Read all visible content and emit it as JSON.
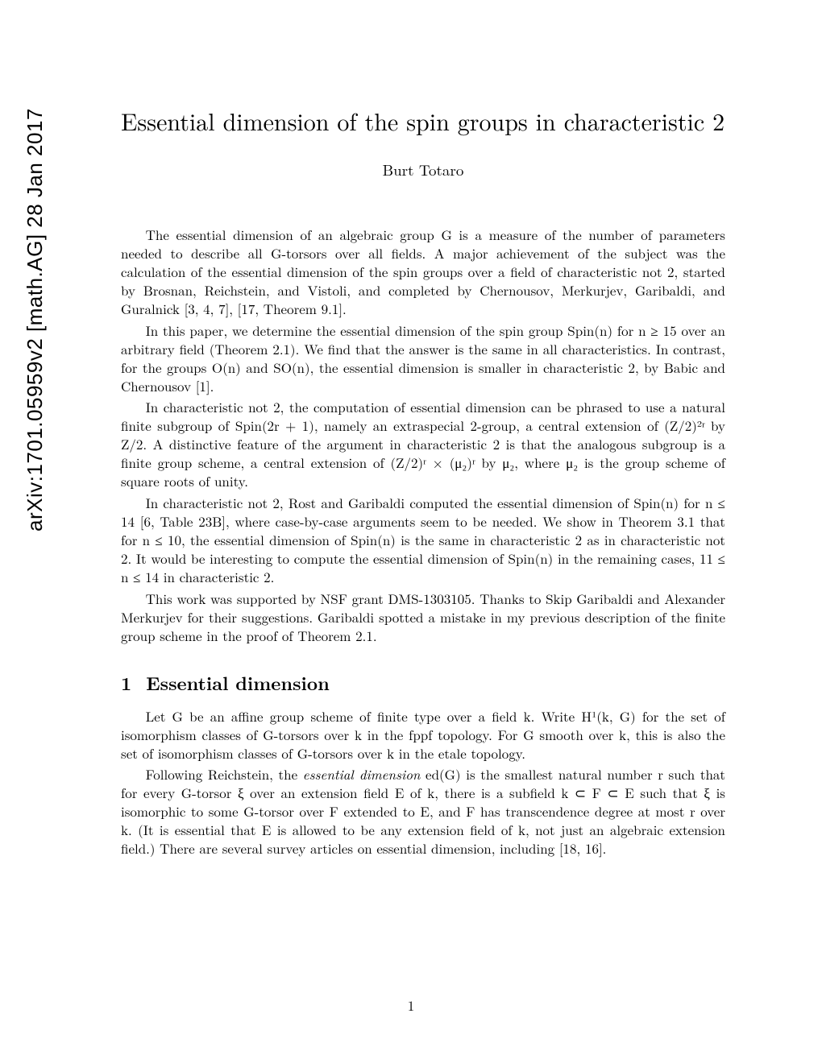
{
  "arxiv_stamp": "arXiv:1701.05959v2  [math.AG]  28 Jan 2017",
  "title": "Essential dimension of the spin groups in characteristic 2",
  "author": "Burt Totaro",
  "paragraphs": {
    "p1": "The essential dimension of an algebraic group G is a measure of the number of parameters needed to describe all G-torsors over all fields. A major achievement of the subject was the calculation of the essential dimension of the spin groups over a field of characteristic not 2, started by Brosnan, Reichstein, and Vistoli, and completed by Chernousov, Merkurjev, Garibaldi, and Guralnick [3, 4, 7], [17, Theorem 9.1].",
    "p2": "In this paper, we determine the essential dimension of the spin group Spin(n) for n ≥ 15 over an arbitrary field (Theorem 2.1). We find that the answer is the same in all characteristics. In contrast, for the groups O(n) and SO(n), the essential dimension is smaller in characteristic 2, by Babic and Chernousov [1].",
    "p3": "In characteristic not 2, the computation of essential dimension can be phrased to use a natural finite subgroup of Spin(2r + 1), namely an extraspecial 2-group, a central extension of (Z/2)²ʳ by Z/2. A distinctive feature of the argument in characteristic 2 is that the analogous subgroup is a finite group scheme, a central extension of (Z/2)ʳ × (μ₂)ʳ by μ₂, where μ₂ is the group scheme of square roots of unity.",
    "p4": "In characteristic not 2, Rost and Garibaldi computed the essential dimension of Spin(n) for n ≤ 14 [6, Table 23B], where case-by-case arguments seem to be needed. We show in Theorem 3.1 that for n ≤ 10, the essential dimension of Spin(n) is the same in characteristic 2 as in characteristic not 2. It would be interesting to compute the essential dimension of Spin(n) in the remaining cases, 11 ≤ n ≤ 14 in characteristic 2.",
    "p5": "This work was supported by NSF grant DMS-1303105. Thanks to Skip Garibaldi and Alexander Merkurjev for their suggestions. Garibaldi spotted a mistake in my previous description of the finite group scheme in the proof of Theorem 2.1."
  },
  "section1": {
    "number": "1",
    "title": "Essential dimension"
  },
  "section1_paragraphs": {
    "s1p1": "Let G be an affine group scheme of finite type over a field k. Write H¹(k, G) for the set of isomorphism classes of G-torsors over k in the fppf topology. For G smooth over k, this is also the set of isomorphism classes of G-torsors over k in the etale topology.",
    "s1p2_a": "Following Reichstein, the ",
    "s1p2_ital": "essential dimension",
    "s1p2_b": " ed(G) is the smallest natural number r such that for every G-torsor ξ over an extension field E of k, there is a subfield k ⊂ F ⊂ E such that ξ is isomorphic to some G-torsor over F extended to E, and F has transcendence degree at most r over k. (It is essential that E is allowed to be any extension field of k, not just an algebraic extension field.) There are several survey articles on essential dimension, including [18, 16]."
  },
  "page_number": "1"
}
